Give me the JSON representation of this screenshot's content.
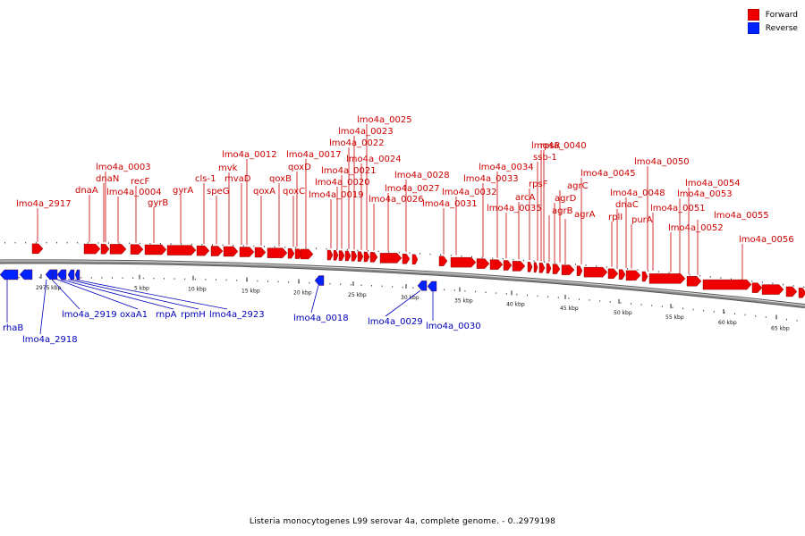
{
  "legend": {
    "forward_label": "Forward",
    "reverse_label": "Reverse",
    "forward_color": "#ee0000",
    "reverse_color": "#0022ff"
  },
  "caption": "Listeria monocytogenes L99 serovar 4a, complete genome. - 0..2979198",
  "colors": {
    "backbone": "#8a8a8a",
    "tick": "#222222",
    "fwd_label": "#cc0000",
    "rev_label": "#0000bb"
  },
  "ticks": [
    {
      "label": "2975 kbp"
    },
    {
      "label": "5 kbp"
    },
    {
      "label": "10 kbp"
    },
    {
      "label": "15 kbp"
    },
    {
      "label": "20 kbp"
    },
    {
      "label": "25 kbp"
    },
    {
      "label": "30 kbp"
    },
    {
      "label": "35 kbp"
    },
    {
      "label": "40 kbp"
    },
    {
      "label": "45 kbp"
    },
    {
      "label": "50 kbp"
    },
    {
      "label": "55 kbp"
    },
    {
      "label": "60 kbp"
    },
    {
      "label": "65 kbp"
    }
  ],
  "forward_labels": [
    "lmo4a_2917",
    "dnaA",
    "dnaN",
    "lmo4a_0003",
    "lmo4a_0004",
    "recF",
    "gyrB",
    "gyrA",
    "cls-1",
    "speG",
    "mvk",
    "mvaD",
    "lmo4a_0012",
    "qoxA",
    "qoxB",
    "qoxC",
    "qoxD",
    "lmo4a_0017",
    "lmo4a_0019",
    "lmo4a_0020",
    "lmo4a_0021",
    "lmo4a_0022",
    "lmo4a_0023",
    "lmo4a_0024",
    "lmo4a_0025",
    "lmo4a_0026",
    "lmo4a_0027",
    "lmo4a_0028",
    "lmo4a_0031",
    "lmo4a_0032",
    "lmo4a_0033",
    "lmo4a_0034",
    "lmo4a_0035",
    "arcA",
    "rpsF",
    "ssb-1",
    "rpsR",
    "lmo4a_0040",
    "agrB",
    "agrD",
    "agrC",
    "agrA",
    "lmo4a_0045",
    "rplI",
    "dnaC",
    "lmo4a_0048",
    "purA",
    "lmo4a_0050",
    "lmo4a_0051",
    "lmo4a_0052",
    "lmo4a_0053",
    "lmo4a_0054",
    "lmo4a_0055",
    "lmo4a_0056"
  ],
  "reverse_labels": [
    "rhaB",
    "lmo4a_2918",
    "lmo4a_2919",
    "oxaA1",
    "rnpA",
    "rpmH",
    "lmo4a_2923",
    "lmo4a_0018",
    "lmo4a_0029",
    "lmo4a_0030"
  ]
}
